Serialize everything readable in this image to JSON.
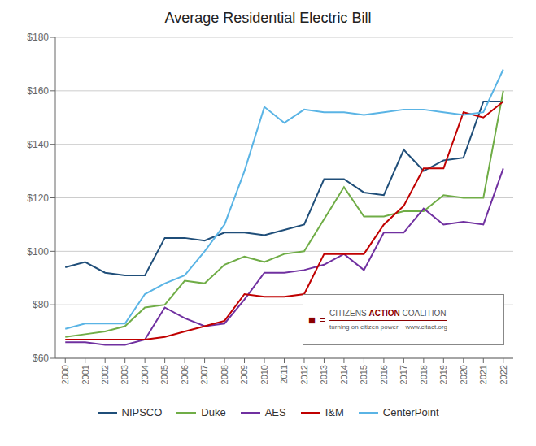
{
  "chart_data": {
    "type": "line",
    "title": "Average Residential Electric Bill",
    "x": [
      2000,
      2001,
      2002,
      2003,
      2004,
      2005,
      2006,
      2007,
      2008,
      2009,
      2010,
      2011,
      2012,
      2013,
      2014,
      2015,
      2016,
      2017,
      2018,
      2019,
      2020,
      2021,
      2022
    ],
    "series": [
      {
        "name": "NIPSCO",
        "color": "#1f4e79",
        "values": [
          94,
          96,
          92,
          91,
          91,
          105,
          105,
          104,
          107,
          107,
          106,
          108,
          110,
          127,
          127,
          122,
          121,
          138,
          130,
          134,
          135,
          156,
          156
        ]
      },
      {
        "name": "Duke",
        "color": "#70ad47",
        "values": [
          68,
          69,
          70,
          72,
          79,
          80,
          89,
          88,
          95,
          98,
          96,
          99,
          100,
          112,
          124,
          113,
          113,
          115,
          115,
          121,
          120,
          120,
          160
        ]
      },
      {
        "name": "AES",
        "color": "#7030a0",
        "values": [
          66,
          66,
          65,
          65,
          67,
          79,
          75,
          72,
          73,
          82,
          92,
          92,
          93,
          95,
          99,
          93,
          107,
          107,
          116,
          110,
          111,
          110,
          131
        ]
      },
      {
        "name": "I&M",
        "color": "#c00000",
        "values": [
          67,
          67,
          67,
          67,
          67,
          68,
          70,
          72,
          74,
          84,
          83,
          83,
          84,
          99,
          99,
          99,
          110,
          117,
          131,
          131,
          152,
          150,
          156
        ]
      },
      {
        "name": "CenterPoint",
        "color": "#5ab4e5",
        "values": [
          71,
          73,
          73,
          73,
          84,
          88,
          91,
          100,
          110,
          130,
          154,
          148,
          153,
          152,
          152,
          151,
          152,
          153,
          153,
          152,
          151,
          152,
          168
        ]
      }
    ],
    "xlim": [
      1999.5,
      2022.5
    ],
    "xticks": [
      2000,
      2001,
      2002,
      2003,
      2004,
      2005,
      2006,
      2007,
      2008,
      2009,
      2010,
      2011,
      2012,
      2013,
      2014,
      2015,
      2016,
      2017,
      2018,
      2019,
      2020,
      2021,
      2022
    ],
    "ylim": [
      60,
      180
    ],
    "yticks": [
      {
        "value": 60,
        "label": "$60"
      },
      {
        "value": 80,
        "label": "$80"
      },
      {
        "value": 100,
        "label": "$100"
      },
      {
        "value": 120,
        "label": "$120"
      },
      {
        "value": 140,
        "label": "$140"
      },
      {
        "value": 160,
        "label": "$160"
      },
      {
        "value": 180,
        "label": "$180"
      }
    ],
    "grid": true,
    "legend": "bottom",
    "annotations": [
      "■",
      "=",
      "CITIZENS",
      "ACTION",
      "COALITION",
      "turning on citizen power    www.citact.org"
    ]
  }
}
